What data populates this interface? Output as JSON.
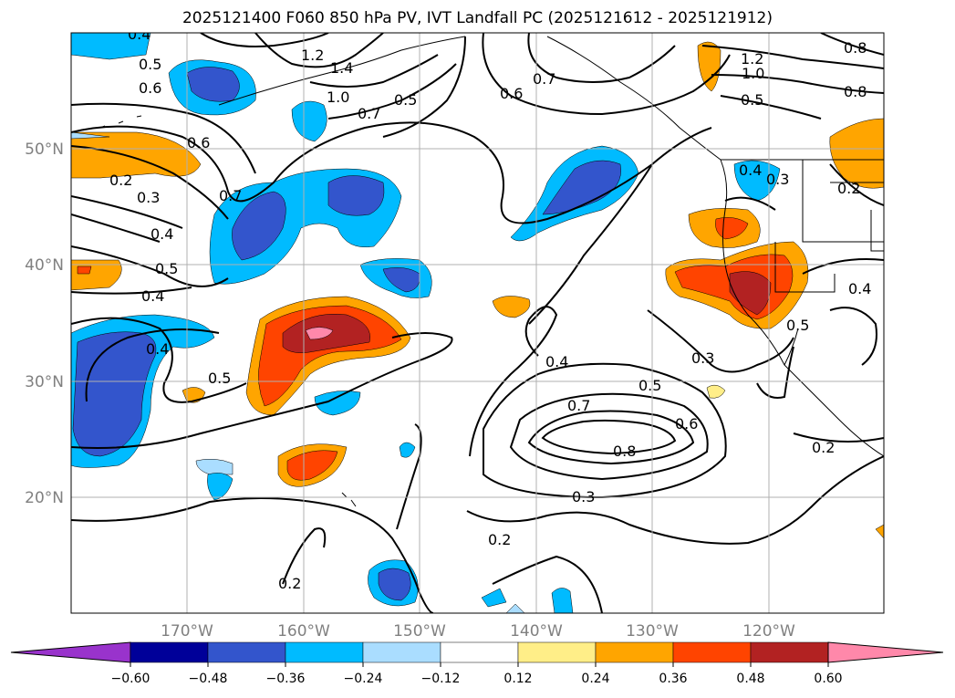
{
  "title": "2025121400 F060 850 hPa PV, IVT Landfall PC (2025121612 - 2025121912)",
  "lat_labels": [
    "50°N",
    "40°N",
    "30°N",
    "20°N"
  ],
  "lon_labels": [
    "170°W",
    "160°W",
    "150°W",
    "140°W",
    "130°W",
    "120°W"
  ],
  "colorbar": {
    "colors": [
      "#9933cc",
      "#000099",
      "#3355cc",
      "#00bbff",
      "#aaddff",
      "#ffffff",
      "#ffee88",
      "#ffa500",
      "#ff4400",
      "#b22222",
      "#ff88aa"
    ],
    "tick_labels": [
      "−0.60",
      "−0.48",
      "−0.36",
      "−0.24",
      "−0.12",
      "0.12",
      "0.24",
      "0.36",
      "0.48",
      "0.60"
    ]
  },
  "contour_labels": [
    "0.4",
    "0.5",
    "0.6",
    "0.6",
    "0.7",
    "0.2",
    "0.3",
    "0.4",
    "0.5",
    "0.4",
    "0.4",
    "0.5",
    "1.2",
    "1.4",
    "1.0",
    "0.7",
    "0.5",
    "0.7",
    "0.6",
    "1.2",
    "1.0",
    "0.5",
    "0.8",
    "0.8",
    "0.4",
    "0.3",
    "0.2",
    "0.4",
    "0.5",
    "0.3",
    "0.4",
    "0.5",
    "0.7",
    "0.6",
    "0.8",
    "0.3",
    "0.2",
    "0.2",
    "0.2"
  ]
}
